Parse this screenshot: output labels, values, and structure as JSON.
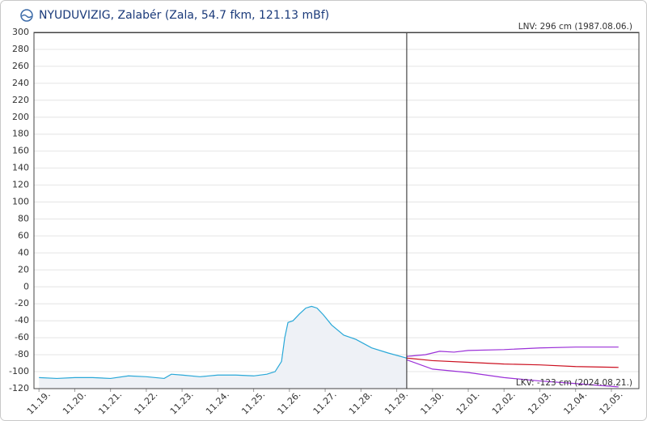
{
  "chart_data": {
    "type": "line",
    "title": "NYUDUVIZIG, Zalabér (Zala, 54.7 fkm, 121.13 mBf)",
    "annotations": [
      "LNV: 296 cm (1987.08.06.)",
      "LKV: -123 cm (2024.08.21.)"
    ],
    "now_x": 10.28,
    "xlim": [
      -0.14,
      16.77
    ],
    "xticks": [
      {
        "value": 0,
        "label": "11.19."
      },
      {
        "value": 1,
        "label": "11.20."
      },
      {
        "value": 2,
        "label": "11.21."
      },
      {
        "value": 3,
        "label": "11.22."
      },
      {
        "value": 4,
        "label": "11.23."
      },
      {
        "value": 5,
        "label": "11.24."
      },
      {
        "value": 6,
        "label": "11.25."
      },
      {
        "value": 7,
        "label": "11.26."
      },
      {
        "value": 8,
        "label": "11.27."
      },
      {
        "value": 9,
        "label": "11.28."
      },
      {
        "value": 10,
        "label": "11.29."
      },
      {
        "value": 11,
        "label": "11.30."
      },
      {
        "value": 12,
        "label": "12.01."
      },
      {
        "value": 13,
        "label": "12.02."
      },
      {
        "value": 14,
        "label": "12.03."
      },
      {
        "value": 15,
        "label": "12.04."
      },
      {
        "value": 16,
        "label": "12.05."
      }
    ],
    "ylim": [
      -120,
      300
    ],
    "yticks": [
      -120,
      -100,
      -80,
      -60,
      -40,
      -20,
      0,
      20,
      40,
      60,
      80,
      100,
      120,
      140,
      160,
      180,
      200,
      220,
      240,
      260,
      280,
      300
    ],
    "grid": true,
    "series": [
      {
        "color": "#29a8d8",
        "fill": "#eef1f6",
        "x": [
          0,
          0.5,
          1,
          1.5,
          2,
          2.5,
          3,
          3.5,
          3.7,
          4,
          4.5,
          5,
          5.5,
          6,
          6.37,
          6.6,
          6.78,
          6.87,
          6.96,
          7.1,
          7.28,
          7.46,
          7.62,
          7.77,
          7.95,
          8.18,
          8.52,
          8.86,
          9.3,
          9.76,
          10.28
        ],
        "values": [
          -107,
          -108,
          -107,
          -107,
          -108,
          -105,
          -106,
          -108,
          -103,
          -104,
          -106,
          -104,
          -104,
          -105,
          -103,
          -100,
          -88,
          -60,
          -42,
          -40,
          -32,
          -25,
          -23,
          -25,
          -33,
          -45,
          -57,
          -62,
          -72,
          -78,
          -84
        ]
      },
      {
        "color": "#9b30d8",
        "x": [
          10.28,
          10.8,
          11.2,
          11.6,
          12,
          13,
          14,
          15,
          16.2
        ],
        "values": [
          -82,
          -80,
          -76,
          -77,
          -75,
          -74,
          -72,
          -71,
          -71
        ]
      },
      {
        "color": "#cc1020",
        "x": [
          10.28,
          11,
          12,
          13,
          14,
          15,
          16.2
        ],
        "values": [
          -84,
          -87,
          -89,
          -91,
          -92,
          -94,
          -95
        ]
      },
      {
        "color": "#9b30d8",
        "x": [
          10.28,
          11,
          12,
          13,
          14,
          15,
          16.2
        ],
        "values": [
          -86,
          -97,
          -101,
          -107,
          -111,
          -114,
          -118
        ]
      }
    ]
  }
}
